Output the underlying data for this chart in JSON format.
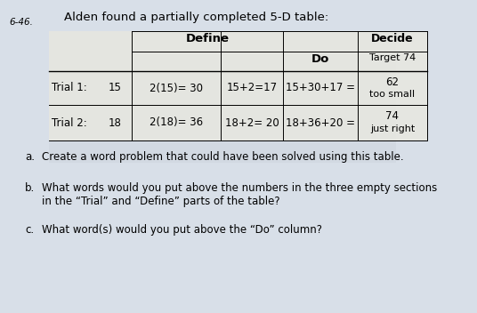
{
  "problem_number": "6-46.",
  "title": "Alden found a partially completed 5-D table:",
  "bg_color": "#d8dfe8",
  "header_define": "Define",
  "header_do": "Do",
  "header_decide": "Decide",
  "target_label": "Target 74",
  "trial1_label": "Trial 1:",
  "trial2_label": "Trial 2:",
  "trial1_col1": "15",
  "trial1_col2": "2(15)= 30",
  "trial1_col3": "15+2=17",
  "trial1_col4": "15+30+17 =",
  "trial1_decide": "62",
  "trial1_decide2": "too small",
  "trial2_col1": "18",
  "trial2_col2": "2(18)= 36",
  "trial2_col3": "18+2= 20",
  "trial2_col4": "18+36+20 =",
  "trial2_decide": "74",
  "trial2_decide2": "just right",
  "qa_label": "a.",
  "qa_text": "Create a word problem that could have been solved using this table.",
  "qb_label": "b.",
  "qb_text": "What words would you put above the numbers in the three empty sections",
  "qb_text2": "in the “Trial” and “Define” parts of the table?",
  "qc_label": "c.",
  "qc_text": "What word(s) would you put above the “Do” column?"
}
